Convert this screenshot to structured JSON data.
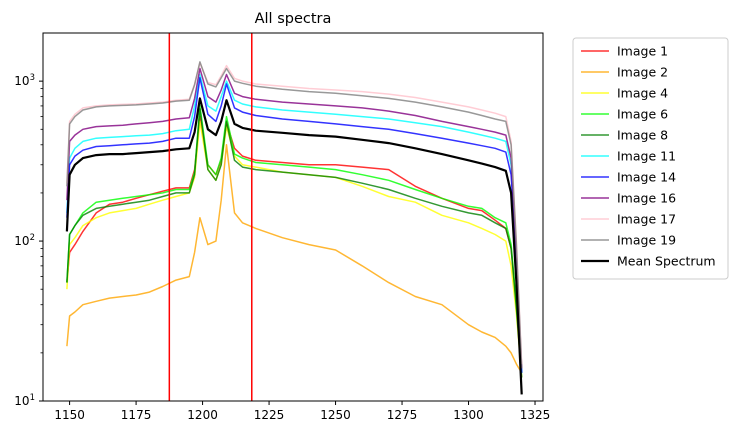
{
  "chart_data": {
    "type": "line",
    "title": "All spectra",
    "xlabel": "",
    "ylabel": "",
    "xlim": [
      1140,
      1328
    ],
    "ylim": [
      10,
      2000
    ],
    "yscale": "log",
    "x_ticks": [
      1150,
      1175,
      1200,
      1225,
      1250,
      1275,
      1300,
      1325
    ],
    "y_ticks": [
      {
        "value": 10,
        "label_base": "10",
        "label_exp": "1"
      },
      {
        "value": 100,
        "label_base": "10",
        "label_exp": "2"
      },
      {
        "value": 1000,
        "label_base": "10",
        "label_exp": "3"
      }
    ],
    "legend_position": "outside right",
    "grid": false,
    "x": [
      1149,
      1150,
      1152,
      1155,
      1160,
      1165,
      1170,
      1175,
      1180,
      1185,
      1190,
      1195,
      1197,
      1199,
      1202,
      1205,
      1207,
      1209,
      1212,
      1215,
      1220,
      1230,
      1240,
      1250,
      1260,
      1270,
      1280,
      1290,
      1300,
      1305,
      1310,
      1314,
      1316,
      1318,
      1320
    ],
    "series": [
      {
        "name": "Image 1",
        "color": "#ff0000",
        "width": 1.5,
        "opacity": 0.8,
        "values": [
          55,
          85,
          95,
          115,
          150,
          170,
          175,
          185,
          195,
          205,
          215,
          215,
          280,
          600,
          300,
          260,
          320,
          550,
          380,
          340,
          320,
          310,
          300,
          300,
          290,
          280,
          220,
          185,
          160,
          155,
          135,
          120,
          90,
          40,
          15
        ]
      },
      {
        "name": "Image 2",
        "color": "#ffa500",
        "width": 1.5,
        "opacity": 0.8,
        "values": [
          22,
          34,
          36,
          40,
          42,
          44,
          45,
          46,
          48,
          52,
          57,
          60,
          85,
          140,
          95,
          100,
          180,
          400,
          150,
          130,
          120,
          105,
          95,
          88,
          70,
          55,
          45,
          40,
          30,
          27,
          25,
          22,
          20,
          17,
          15
        ]
      },
      {
        "name": "Image 4",
        "color": "#ffff00",
        "width": 1.5,
        "opacity": 0.8,
        "values": [
          50,
          95,
          105,
          125,
          140,
          150,
          155,
          160,
          170,
          180,
          190,
          200,
          250,
          560,
          280,
          240,
          300,
          520,
          340,
          300,
          290,
          270,
          260,
          250,
          220,
          190,
          175,
          145,
          130,
          120,
          110,
          100,
          70,
          35,
          14
        ]
      },
      {
        "name": "Image 6",
        "color": "#00ff00",
        "width": 1.5,
        "opacity": 0.8,
        "values": [
          55,
          110,
          125,
          150,
          175,
          180,
          185,
          190,
          195,
          200,
          210,
          210,
          270,
          700,
          300,
          260,
          330,
          600,
          350,
          330,
          310,
          300,
          290,
          280,
          260,
          240,
          210,
          185,
          165,
          160,
          140,
          130,
          95,
          40,
          15
        ]
      },
      {
        "name": "Image 8",
        "color": "#008000",
        "width": 1.5,
        "opacity": 0.8,
        "values": [
          55,
          110,
          125,
          145,
          160,
          165,
          170,
          175,
          180,
          190,
          200,
          200,
          260,
          670,
          280,
          240,
          300,
          560,
          320,
          290,
          280,
          270,
          260,
          250,
          230,
          210,
          185,
          165,
          150,
          145,
          130,
          120,
          90,
          38,
          14
        ]
      },
      {
        "name": "Image 11",
        "color": "#00ffff",
        "width": 1.5,
        "opacity": 0.8,
        "values": [
          150,
          330,
          380,
          420,
          440,
          445,
          450,
          455,
          460,
          470,
          490,
          500,
          700,
          1100,
          700,
          650,
          800,
          1000,
          760,
          720,
          690,
          660,
          640,
          620,
          600,
          580,
          550,
          520,
          480,
          460,
          440,
          420,
          300,
          80,
          15
        ]
      },
      {
        "name": "Image 14",
        "color": "#0000ff",
        "width": 1.5,
        "opacity": 0.8,
        "values": [
          140,
          300,
          340,
          370,
          390,
          395,
          400,
          405,
          410,
          420,
          440,
          440,
          600,
          1050,
          620,
          560,
          700,
          960,
          680,
          640,
          610,
          580,
          560,
          540,
          520,
          500,
          470,
          440,
          410,
          395,
          380,
          360,
          260,
          75,
          15
        ]
      },
      {
        "name": "Image 16",
        "color": "#800080",
        "width": 1.5,
        "opacity": 0.8,
        "values": [
          180,
          420,
          460,
          500,
          520,
          525,
          530,
          540,
          550,
          560,
          580,
          590,
          780,
          1200,
          800,
          740,
          880,
          1100,
          840,
          800,
          770,
          740,
          720,
          700,
          680,
          650,
          610,
          560,
          520,
          500,
          480,
          460,
          330,
          85,
          16
        ]
      },
      {
        "name": "Image 17",
        "color": "#ffc0cb",
        "width": 1.5,
        "opacity": 0.8,
        "values": [
          230,
          560,
          620,
          680,
          700,
          710,
          715,
          720,
          730,
          740,
          760,
          770,
          960,
          1300,
          980,
          950,
          1080,
          1250,
          1040,
          1000,
          960,
          930,
          900,
          880,
          860,
          830,
          790,
          740,
          690,
          660,
          630,
          600,
          420,
          100,
          17
        ]
      },
      {
        "name": "Image 19",
        "color": "#808080",
        "width": 1.5,
        "opacity": 0.8,
        "values": [
          220,
          540,
          600,
          660,
          690,
          700,
          705,
          710,
          720,
          730,
          750,
          760,
          950,
          1320,
          960,
          920,
          1050,
          1200,
          1000,
          970,
          930,
          890,
          860,
          840,
          810,
          780,
          740,
          690,
          640,
          610,
          580,
          560,
          400,
          95,
          16
        ]
      },
      {
        "name": "Mean Spectrum",
        "color": "#000000",
        "width": 2.2,
        "opacity": 1,
        "values": [
          115,
          260,
          300,
          330,
          345,
          350,
          350,
          355,
          360,
          365,
          375,
          380,
          480,
          780,
          500,
          460,
          560,
          760,
          540,
          510,
          490,
          475,
          460,
          450,
          430,
          410,
          380,
          350,
          320,
          305,
          290,
          275,
          200,
          55,
          11
        ]
      }
    ],
    "vlines": [
      {
        "x": 1187.5,
        "color": "#ff0000"
      },
      {
        "x": 1218.5,
        "color": "#ff0000"
      }
    ]
  }
}
